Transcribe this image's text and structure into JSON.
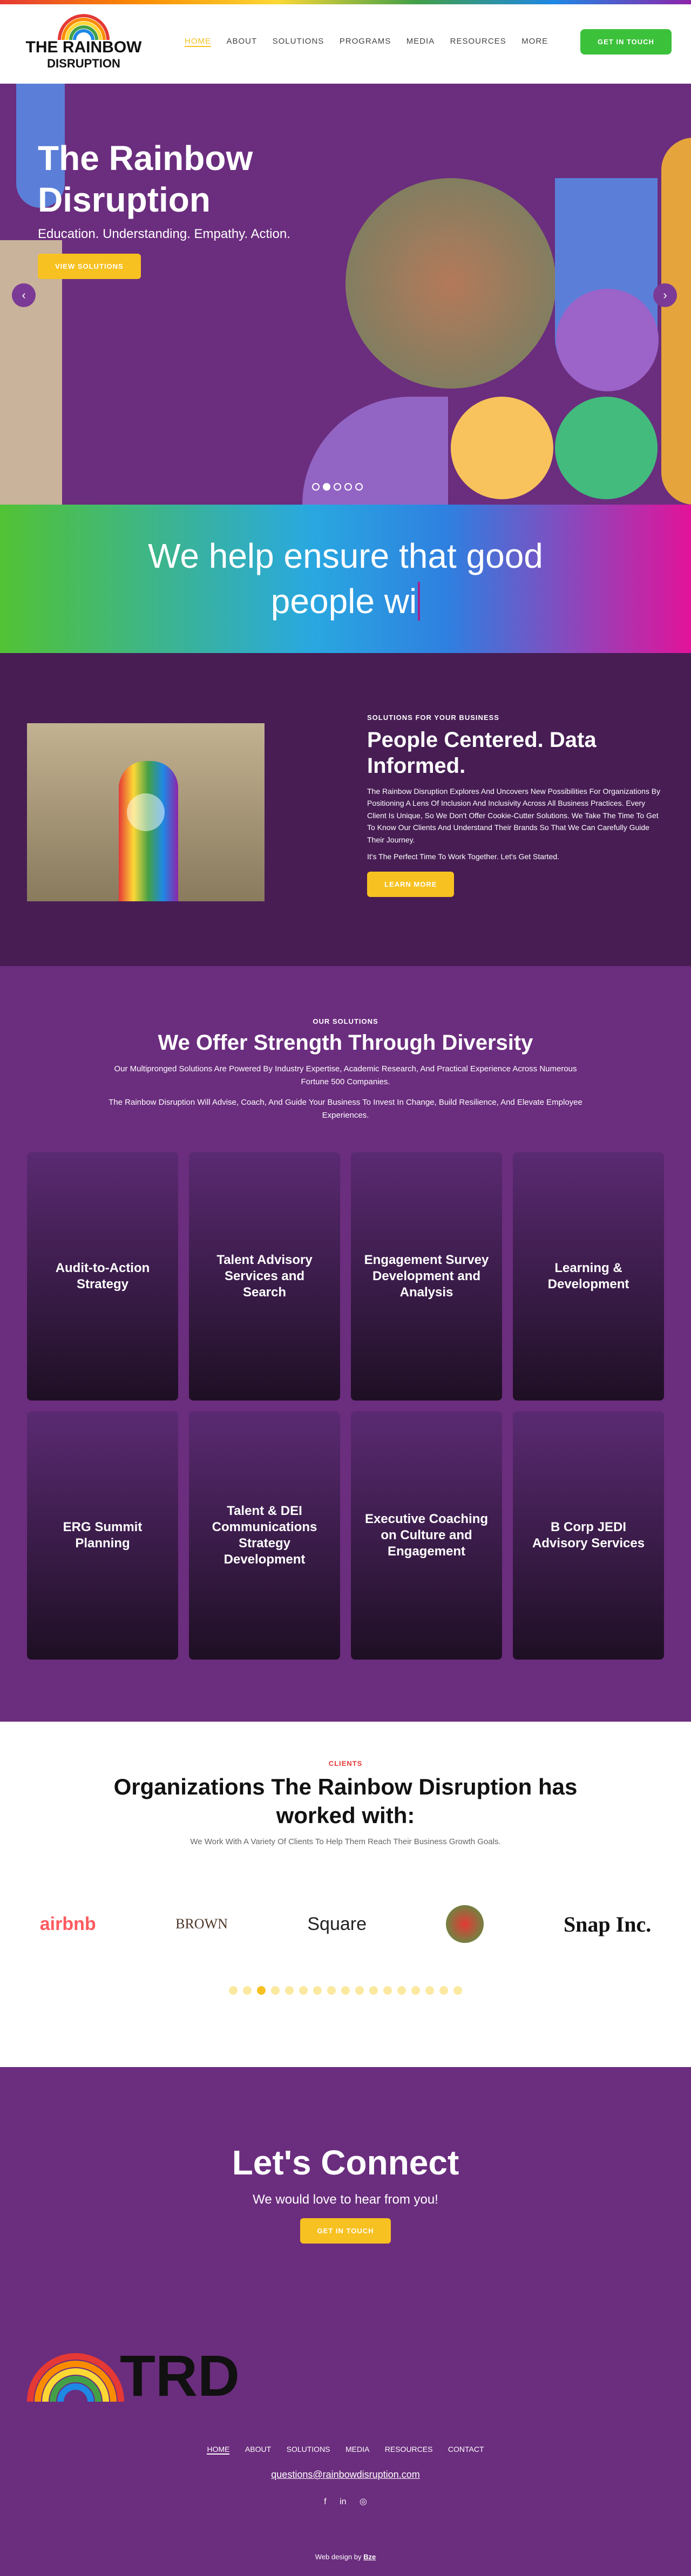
{
  "header": {
    "logo_line1": "THE RAINBOW",
    "logo_line2": "DISRUPTION",
    "nav": [
      "HOME",
      "ABOUT",
      "SOLUTIONS",
      "PROGRAMS",
      "MEDIA",
      "RESOURCES",
      "MORE"
    ],
    "cta": "GET IN TOUCH"
  },
  "hero": {
    "title": "The Rainbow Disruption",
    "subtitle": "Education. Understanding. Empathy. Action.",
    "button": "VIEW SOLUTIONS"
  },
  "banner": {
    "text": "We help ensure that good people wi"
  },
  "intro": {
    "eyebrow": "SOLUTIONS FOR YOUR BUSINESS",
    "title": "People Centered. Data Informed.",
    "paragraphs": [
      "The Rainbow Disruption Explores And Uncovers New Possibilities For Organizations By Positioning A Lens Of Inclusion And Inclusivity Across All Business Practices. Every Client Is Unique, So We Don't Offer Cookie-Cutter Solutions. We Take The Time To Get To Know Our Clients And Understand Their Brands So That We Can Carefully Guide Their Journey.",
      "It's The Perfect Time To Work Together. Let's Get Started."
    ],
    "button": "LEARN MORE"
  },
  "solutions": {
    "eyebrow": "OUR SOLUTIONS",
    "title": "We Offer Strength Through Diversity",
    "paragraphs": [
      "Our Multipronged Solutions Are Powered By Industry Expertise, Academic Research, And Practical Experience Across Numerous Fortune 500 Companies.",
      "The Rainbow Disruption Will Advise, Coach, And Guide Your Business To Invest In Change, Build Resilience, And Elevate Employee Experiences."
    ],
    "cards": [
      "Audit-to-Action Strategy",
      "Talent Advisory Services and Search",
      "Engagement Survey Development and Analysis",
      "Learning & Development",
      "ERG Summit Planning",
      "Talent & DEI Communications Strategy Development",
      "Executive Coaching on Culture and Engagement",
      "B Corp JEDI Advisory Services"
    ]
  },
  "clients": {
    "eyebrow": "CLIENTS",
    "title": "Organizations The Rainbow Disruption has worked with:",
    "text": "We Work With A Variety Of Clients To Help Them Reach Their Business Growth Goals.",
    "logos": [
      "airbnb",
      "BROWN",
      "Square",
      "Snap Inc."
    ]
  },
  "connect": {
    "title": "Let's Connect",
    "text": "We would love to hear from you!",
    "button": "GET IN TOUCH"
  },
  "footer": {
    "logo": "TRD",
    "nav": [
      "HOME",
      "ABOUT",
      "SOLUTIONS",
      "MEDIA",
      "RESOURCES",
      "CONTACT"
    ],
    "email": "questions@rainbowdisruption.com",
    "credit": "Web design by",
    "credit_brand": "Bze"
  }
}
